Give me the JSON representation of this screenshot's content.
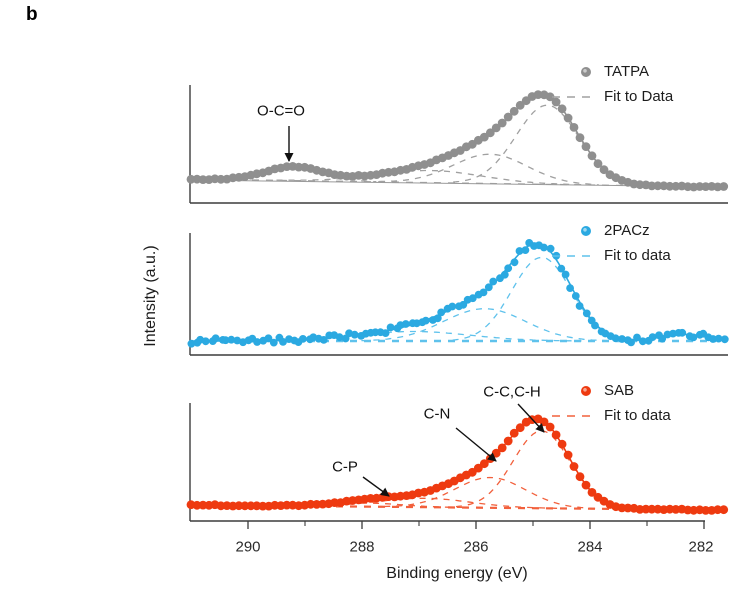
{
  "figure_label": "b",
  "axes": {
    "x_label": "Binding energy (eV)",
    "y_label": "Intensity (a.u.)",
    "x_ticks": [
      "290",
      "288",
      "286",
      "284",
      "282"
    ],
    "x_tick_values": [
      290,
      288,
      286,
      284,
      282
    ],
    "x_minor_tick_values": [
      289,
      287,
      285,
      283
    ],
    "x_range": [
      291.0,
      281.6
    ],
    "x_direction": "reversed"
  },
  "chart_data": {
    "type": "line",
    "xlabel": "Binding energy (eV)",
    "ylabel": "Intensity (a.u.)",
    "x_ticks": [
      290,
      288,
      286,
      284,
      282
    ],
    "panels": [
      {
        "id": "tatpa",
        "name": "TATPA",
        "color": "#8F8F8F",
        "fit_color": "#A0A0A0",
        "legend": {
          "series": "TATPA",
          "fit": "Fit to Data"
        },
        "annotations": [
          {
            "label": "O-C=O",
            "binding_energy_ev": 289.2
          }
        ],
        "main_peak_ev": 284.8,
        "components": [
          {
            "center_ev": 284.75,
            "sigma_ev": 0.55,
            "amplitude": 0.92
          },
          {
            "center_ev": 285.75,
            "sigma_ev": 0.65,
            "amplitude": 0.34
          },
          {
            "center_ev": 286.8,
            "sigma_ev": 0.9,
            "amplitude": 0.14
          },
          {
            "center_ev": 289.2,
            "sigma_ev": 0.5,
            "amplitude": 0.16
          }
        ],
        "noise": 0.5
      },
      {
        "id": "pacz",
        "name": "2PACz",
        "color": "#2BA9E1",
        "fit_color": "#5FC2EC",
        "legend": {
          "series": "2PACz",
          "fit": "Fit to data"
        },
        "annotations": [],
        "main_peak_ev": 284.9,
        "components": [
          {
            "center_ev": 284.85,
            "sigma_ev": 0.52,
            "amplitude": 0.88
          },
          {
            "center_ev": 285.85,
            "sigma_ev": 0.72,
            "amplitude": 0.34
          },
          {
            "center_ev": 287.1,
            "sigma_ev": 1.0,
            "amplitude": 0.1
          },
          {
            "center_ev": 282.35,
            "sigma_ev": 0.4,
            "amplitude": 0.07
          }
        ],
        "noise": 2.8
      },
      {
        "id": "sab",
        "name": "SAB",
        "color": "#EE3A10",
        "fit_color": "#F2603C",
        "legend": {
          "series": "SAB",
          "fit": "Fit to data"
        },
        "annotations": [
          {
            "label": "C-P",
            "binding_energy_ev": 287.4
          },
          {
            "label": "C-N",
            "binding_energy_ev": 285.6
          },
          {
            "label": "C-C,C-H",
            "binding_energy_ev": 284.9
          }
        ],
        "main_peak_ev": 284.8,
        "components": [
          {
            "center_ev": 284.85,
            "sigma_ev": 0.5,
            "amplitude": 0.87
          },
          {
            "center_ev": 285.75,
            "sigma_ev": 0.62,
            "amplitude": 0.34
          },
          {
            "center_ev": 286.9,
            "sigma_ev": 0.8,
            "amplitude": 0.1
          },
          {
            "center_ev": 287.9,
            "sigma_ev": 0.6,
            "amplitude": 0.04
          }
        ],
        "noise": 0.6
      }
    ]
  }
}
